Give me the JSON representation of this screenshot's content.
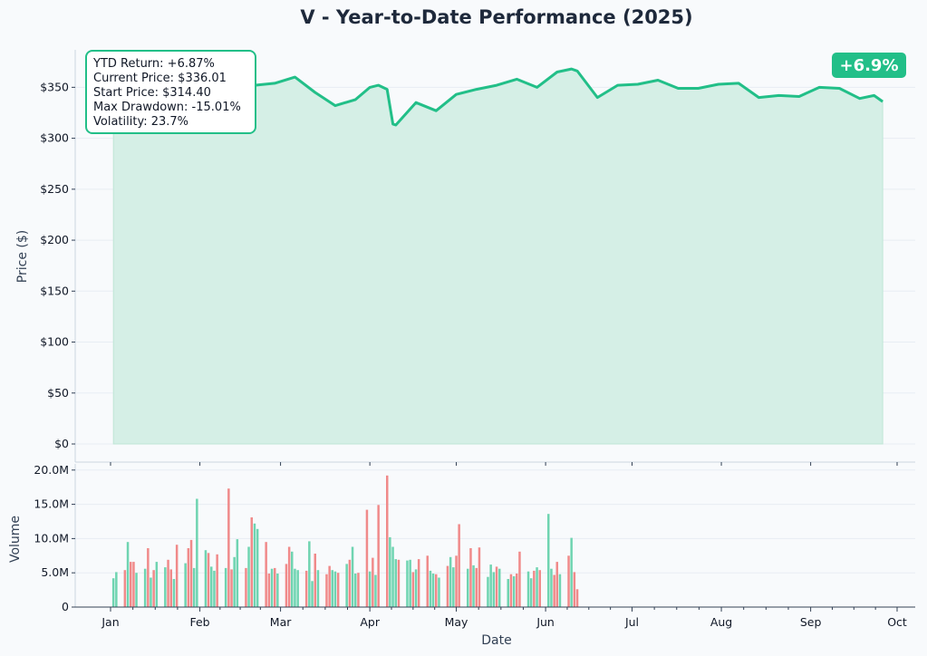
{
  "title": "V - Year-to-Date Performance (2025)",
  "badge": "+6.9%",
  "stats": {
    "ytd_return": "YTD Return: +6.87%",
    "current_price": "Current Price: $336.01",
    "start_price": "Start Price: $314.40",
    "max_drawdown": "Max Drawdown: -15.01%",
    "volatility": "Volatility: 23.7%"
  },
  "colors": {
    "line": "#22bf88",
    "fill": "#d5efe6",
    "up": "#6fd4b1",
    "down": "#f08a8a",
    "badge_bg": "#22bf88",
    "title": "#1e293b"
  },
  "chart_data": [
    {
      "type": "line",
      "title": "V - Year-to-Date Performance (2025)",
      "ylabel": "Price ($)",
      "ylim": [
        0,
        385
      ],
      "y_ticks": [
        0,
        50,
        100,
        150,
        200,
        250,
        300,
        350
      ],
      "y_tick_labels": [
        "$0",
        "$50",
        "$100",
        "$150",
        "$200",
        "$250",
        "$300",
        "$350"
      ],
      "x": [
        "2025-01-02",
        "2025-01-09",
        "2025-01-16",
        "2025-01-23",
        "2025-01-30",
        "2025-02-06",
        "2025-02-13",
        "2025-02-20",
        "2025-02-27",
        "2025-03-06",
        "2025-03-13",
        "2025-03-20",
        "2025-03-27",
        "2025-04-01",
        "2025-04-04",
        "2025-04-07",
        "2025-04-09",
        "2025-04-10",
        "2025-04-17",
        "2025-04-24",
        "2025-05-01",
        "2025-05-08",
        "2025-05-15",
        "2025-05-22",
        "2025-05-29",
        "2025-06-05",
        "2025-06-10",
        "2025-06-12",
        "2025-06-19",
        "2025-06-26",
        "2025-07-03",
        "2025-07-10",
        "2025-07-17",
        "2025-07-24",
        "2025-07-31",
        "2025-08-07",
        "2025-08-14",
        "2025-08-21",
        "2025-08-28",
        "2025-09-04",
        "2025-09-11",
        "2025-09-18",
        "2025-09-23",
        "2025-09-26"
      ],
      "series": [
        {
          "values": [
            314.4,
            309,
            316,
            326,
            336,
            342,
            348,
            352,
            354,
            360,
            345,
            332,
            338,
            350,
            352,
            348,
            314,
            313,
            335,
            327,
            343,
            348,
            352,
            358,
            350,
            365,
            368,
            366,
            340,
            352,
            353,
            357,
            349,
            349,
            353,
            354,
            340,
            342,
            341,
            350,
            349,
            339,
            342,
            336.01
          ],
          "fill": true
        }
      ],
      "grid": true
    },
    {
      "type": "bar",
      "xlabel": "Date",
      "ylabel": "Volume",
      "ylim": [
        0,
        20500000
      ],
      "y_ticks": [
        0,
        5000000,
        10000000,
        15000000,
        20000000
      ],
      "y_tick_labels": [
        "0",
        "5.0M",
        "10.0M",
        "15.0M",
        "20.0M"
      ],
      "x_tick_labels": [
        "Jan",
        "Feb",
        "Mar",
        "Apr",
        "May",
        "Jun",
        "Jul",
        "Aug",
        "Sep",
        "Oct"
      ],
      "x_ticks": [
        "2025-01-01",
        "2025-02-01",
        "2025-03-01",
        "2025-04-01",
        "2025-05-01",
        "2025-06-01",
        "2025-07-01",
        "2025-08-01",
        "2025-09-01",
        "2025-10-01"
      ],
      "series": [
        {
          "name": "up",
          "values": [
            4200000,
            5100000,
            9500000,
            5000000,
            5600000,
            4300000,
            6600000,
            5800000,
            4100000,
            6400000,
            5700000,
            15800000,
            8300000,
            5900000,
            5300000,
            5700000,
            7300000,
            9900000,
            8800000,
            12200000,
            11400000,
            5600000,
            4900000,
            8100000,
            5600000,
            5400000,
            9600000,
            3800000,
            5400000,
            5400000,
            5200000,
            6300000,
            8800000,
            4900000,
            5200000,
            4700000,
            10200000,
            8800000,
            7000000,
            6800000,
            6900000,
            5500000,
            5300000,
            4900000,
            4300000,
            7300000,
            5800000,
            5600000,
            6100000,
            4400000,
            6200000,
            5100000,
            5600000,
            4100000,
            4500000,
            5200000,
            4200000,
            5800000,
            13600000,
            5600000
          ]
        },
        {
          "name": "down",
          "values": [
            5400000,
            6600000,
            6600000,
            8600000,
            5400000,
            6900000,
            5500000,
            9100000,
            8600000,
            9800000,
            7900000,
            7700000,
            17300000,
            5500000,
            5700000,
            13100000,
            9500000,
            4900000,
            5700000,
            6300000,
            8800000,
            5300000,
            7800000,
            4800000,
            6000000,
            5000000,
            6900000,
            5000000,
            14200000,
            7200000,
            14900000,
            19200000,
            6900000,
            5100000,
            7000000,
            7500000,
            4800000,
            6000000,
            7500000,
            12100000,
            8600000,
            5700000,
            8700000,
            5900000,
            4800000,
            4900000,
            8100000,
            5300000,
            5400000,
            4700000,
            6600000,
            4800000,
            7500000,
            10100000,
            5100000,
            2600000
          ]
        }
      ],
      "grid": true
    }
  ]
}
